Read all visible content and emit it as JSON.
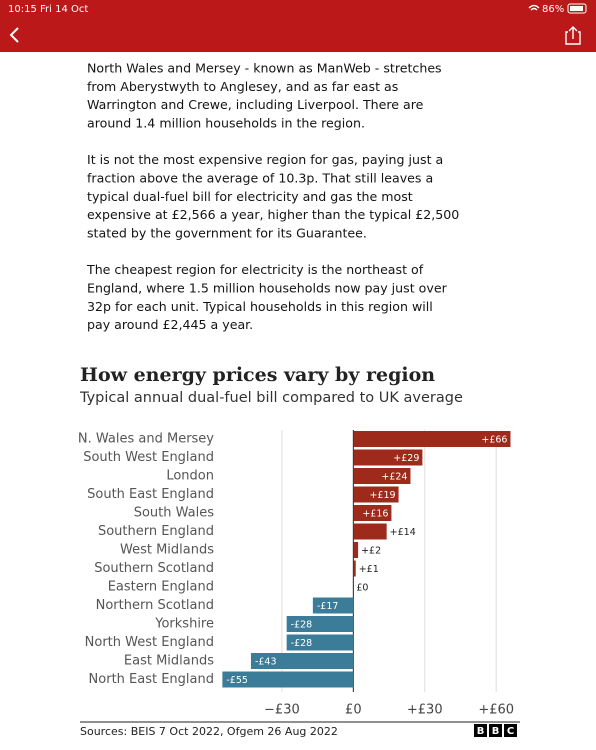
{
  "status_bar": {
    "time": "10:15",
    "date": "Fri 14 Oct",
    "battery": "86%"
  },
  "article": {
    "paragraphs": [
      [
        "North Wales and Mersey - known as ManWeb - stretches",
        "from Aberystwyth to Anglesey, and as far east as",
        "Warrington and Crewe, including Liverpool. There are",
        "around 1.4 million households in the region."
      ],
      [
        "It is not the most expensive region for gas, paying just a",
        "fraction above the average of 10.3p. That still leaves a",
        "typical dual-fuel bill for electricity and gas the most",
        "expensive at £2,566 a year, higher than the typical £2,500",
        "stated by the government for its Guarantee."
      ],
      [
        "The cheapest region for electricity is the northeast of",
        "England, where 1.5 million households now pay just over",
        "32p for each unit. Typical households in this region will",
        "pay around £2,445 a year."
      ]
    ]
  },
  "chart_data": {
    "type": "bar",
    "orientation": "horizontal",
    "title": "How energy prices vary by region",
    "subtitle": "Typical annual dual-fuel bill compared to UK average",
    "categories": [
      "N. Wales and Mersey",
      "South West England",
      "London",
      "South East England",
      "South Wales",
      "Southern England",
      "West Midlands",
      "Southern Scotland",
      "Eastern England",
      "Northern Scotland",
      "Yorkshire",
      "North West England",
      "East Midlands",
      "North East England"
    ],
    "values": [
      66,
      29,
      24,
      19,
      16,
      14,
      2,
      1,
      0,
      -17,
      -28,
      -28,
      -43,
      -55
    ],
    "value_labels": [
      "+£66",
      "+£29",
      "+£24",
      "+£19",
      "+£16",
      "+£14",
      "+£2",
      "+£1",
      "£0",
      "-£17",
      "-£28",
      "-£28",
      "-£43",
      "-£55"
    ],
    "positive_color": "#9e2a1c",
    "negative_color": "#3b7d98",
    "xlim": [
      -56,
      70
    ],
    "xticks": [
      {
        "value": -30,
        "label": "−£30"
      },
      {
        "value": 0,
        "label": "£0"
      },
      {
        "value": 30,
        "label": "+£30"
      },
      {
        "value": 60,
        "label": "+£60"
      }
    ],
    "grid": true,
    "source": "Sources: BEIS 7 Oct 2022, Ofgem 26 Aug 2022",
    "logo": [
      "B",
      "B",
      "C"
    ]
  }
}
